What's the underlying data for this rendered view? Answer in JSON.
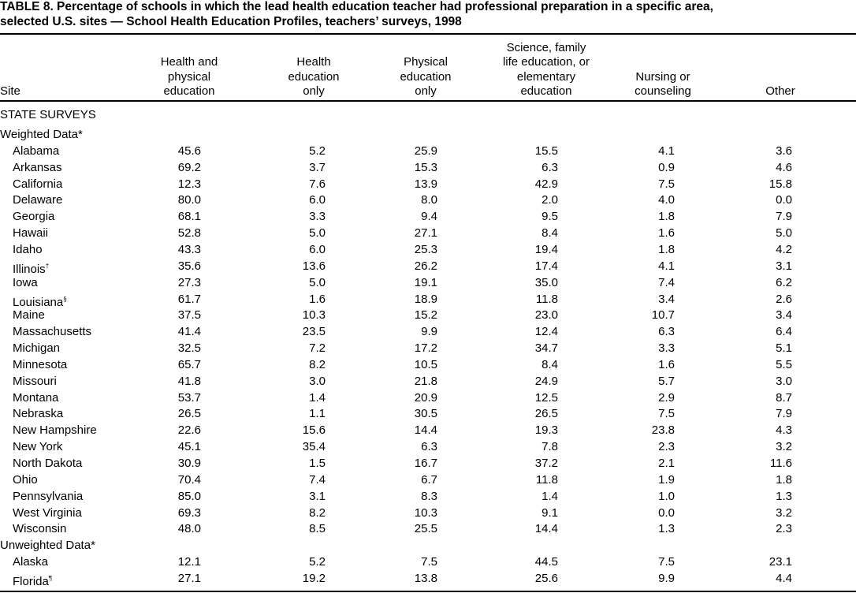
{
  "title": [
    "TABLE 8. Percentage of schools in which the lead health education teacher had professional preparation in a specific area,",
    "selected U.S. sites — School Health Education Profiles, teachers’ surveys, 1998"
  ],
  "table": {
    "header": [
      [
        "Site"
      ],
      [
        "Health and",
        "physical",
        "education"
      ],
      [
        "Health",
        "education",
        "only"
      ],
      [
        "Physical",
        "education",
        "only"
      ],
      [
        "Science, family",
        "life education, or",
        "elementary",
        "education"
      ],
      [
        "Nursing or",
        "counseling"
      ],
      [
        "Other"
      ]
    ],
    "section": "STATE SURVEYS",
    "groups": [
      {
        "label": "Weighted Data*",
        "rows": [
          {
            "site": "Alabama",
            "values": [
              "45.6",
              "5.2",
              "25.9",
              "15.5",
              "4.1",
              "3.6"
            ]
          },
          {
            "site": "Arkansas",
            "values": [
              "69.2",
              "3.7",
              "15.3",
              "6.3",
              "0.9",
              "4.6"
            ]
          },
          {
            "site": "California",
            "values": [
              "12.3",
              "7.6",
              "13.9",
              "42.9",
              "7.5",
              "15.8"
            ]
          },
          {
            "site": "Delaware",
            "values": [
              "80.0",
              "6.0",
              "8.0",
              "2.0",
              "4.0",
              "0.0"
            ]
          },
          {
            "site": "Georgia",
            "values": [
              "68.1",
              "3.3",
              "9.4",
              "9.5",
              "1.8",
              "7.9"
            ]
          },
          {
            "site": "Hawaii",
            "values": [
              "52.8",
              "5.0",
              "27.1",
              "8.4",
              "1.6",
              "5.0"
            ]
          },
          {
            "site": "Idaho",
            "values": [
              "43.3",
              "6.0",
              "25.3",
              "19.4",
              "1.8",
              "4.2"
            ]
          },
          {
            "site": "Illinois",
            "mark": "†",
            "values": [
              "35.6",
              "13.6",
              "26.2",
              "17.4",
              "4.1",
              "3.1"
            ]
          },
          {
            "site": "Iowa",
            "values": [
              "27.3",
              "5.0",
              "19.1",
              "35.0",
              "7.4",
              "6.2"
            ]
          },
          {
            "site": "Louisiana",
            "mark": "§",
            "values": [
              "61.7",
              "1.6",
              "18.9",
              "11.8",
              "3.4",
              "2.6"
            ]
          },
          {
            "site": "Maine",
            "values": [
              "37.5",
              "10.3",
              "15.2",
              "23.0",
              "10.7",
              "3.4"
            ]
          },
          {
            "site": "Massachusetts",
            "values": [
              "41.4",
              "23.5",
              "9.9",
              "12.4",
              "6.3",
              "6.4"
            ]
          },
          {
            "site": "Michigan",
            "values": [
              "32.5",
              "7.2",
              "17.2",
              "34.7",
              "3.3",
              "5.1"
            ]
          },
          {
            "site": "Minnesota",
            "values": [
              "65.7",
              "8.2",
              "10.5",
              "8.4",
              "1.6",
              "5.5"
            ]
          },
          {
            "site": "Missouri",
            "values": [
              "41.8",
              "3.0",
              "21.8",
              "24.9",
              "5.7",
              "3.0"
            ]
          },
          {
            "site": "Montana",
            "values": [
              "53.7",
              "1.4",
              "20.9",
              "12.5",
              "2.9",
              "8.7"
            ]
          },
          {
            "site": "Nebraska",
            "values": [
              "26.5",
              "1.1",
              "30.5",
              "26.5",
              "7.5",
              "7.9"
            ]
          },
          {
            "site": "New Hampshire",
            "values": [
              "22.6",
              "15.6",
              "14.4",
              "19.3",
              "23.8",
              "4.3"
            ]
          },
          {
            "site": "New York",
            "values": [
              "45.1",
              "35.4",
              "6.3",
              "7.8",
              "2.3",
              "3.2"
            ]
          },
          {
            "site": "North Dakota",
            "values": [
              "30.9",
              "1.5",
              "16.7",
              "37.2",
              "2.1",
              "11.6"
            ]
          },
          {
            "site": "Ohio",
            "values": [
              "70.4",
              "7.4",
              "6.7",
              "11.8",
              "1.9",
              "1.8"
            ]
          },
          {
            "site": "Pennsylvania",
            "values": [
              "85.0",
              "3.1",
              "8.3",
              "1.4",
              "1.0",
              "1.3"
            ]
          },
          {
            "site": "West Virginia",
            "values": [
              "69.3",
              "8.2",
              "10.3",
              "9.1",
              "0.0",
              "3.2"
            ]
          },
          {
            "site": "Wisconsin",
            "values": [
              "48.0",
              "8.5",
              "25.5",
              "14.4",
              "1.3",
              "2.3"
            ]
          }
        ]
      },
      {
        "label": "Unweighted Data*",
        "rows": [
          {
            "site": "Alaska",
            "values": [
              "12.1",
              "5.2",
              "7.5",
              "44.5",
              "7.5",
              "23.1"
            ]
          },
          {
            "site": "Florida",
            "mark": "¶",
            "values": [
              "27.1",
              "19.2",
              "13.8",
              "25.6",
              "9.9",
              "4.4"
            ]
          }
        ]
      }
    ]
  }
}
